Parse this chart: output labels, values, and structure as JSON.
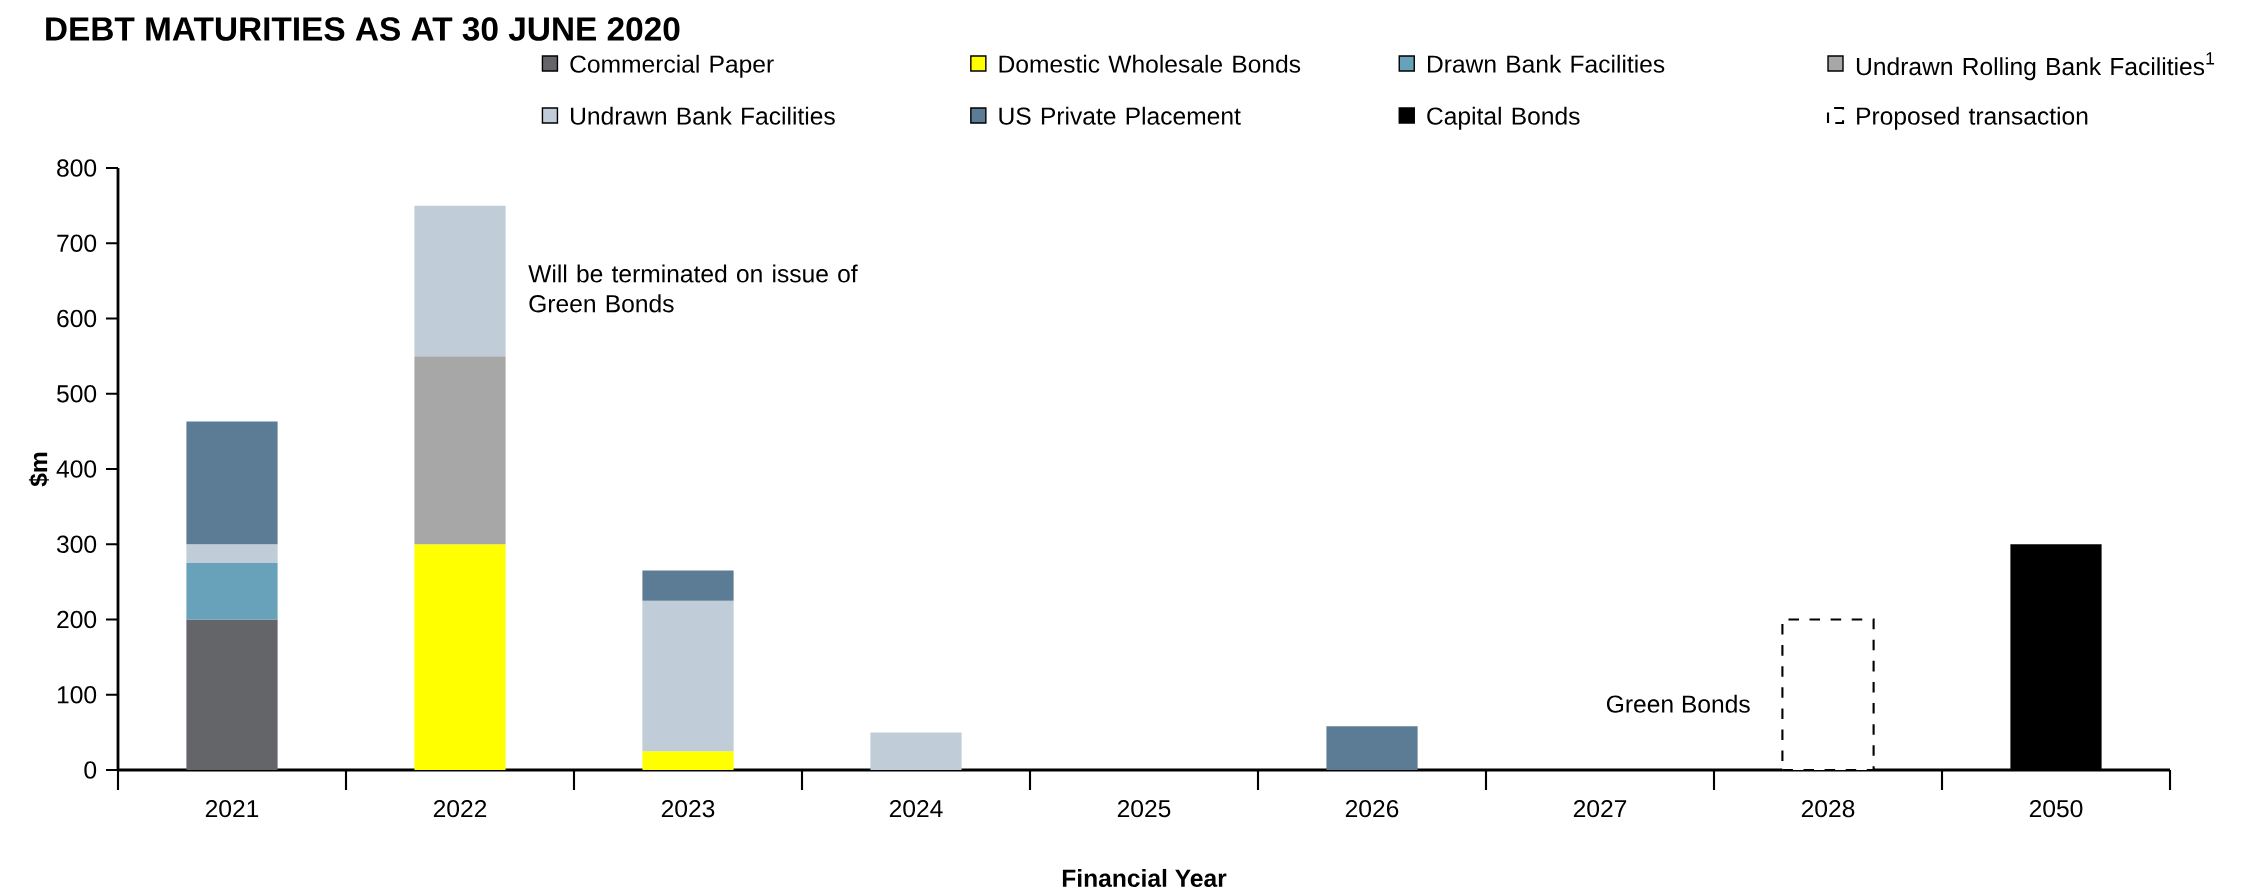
{
  "chart_data": {
    "type": "bar",
    "title": "DEBT MATURITIES AS AT 30 JUNE 2020",
    "xlabel": "Financial Year",
    "ylabel": "$m",
    "categories": [
      "2021",
      "2022",
      "2023",
      "2024",
      "2025",
      "2026",
      "2027",
      "2028",
      "2050"
    ],
    "stacked": true,
    "ylim": [
      0,
      800
    ],
    "yticks": [
      0,
      100,
      200,
      300,
      400,
      500,
      600,
      700,
      800
    ],
    "legend": "top right",
    "series": [
      {
        "name": "Commercial Paper",
        "color": "#636569",
        "values": [
          200,
          null,
          null,
          null,
          null,
          null,
          null,
          null,
          null
        ]
      },
      {
        "name": "Domestic Wholesale Bonds",
        "color": "#ffff00",
        "values": [
          null,
          300,
          25,
          null,
          null,
          null,
          null,
          null,
          null
        ]
      },
      {
        "name": "Drawn Bank Facilities",
        "color": "#67a2ba",
        "values": [
          75,
          null,
          null,
          null,
          null,
          null,
          null,
          null,
          null
        ]
      },
      {
        "name": "Undrawn Rolling Bank Facilities$^{1}$",
        "color": "#a7a7a8",
        "values": [
          null,
          250,
          null,
          null,
          null,
          null,
          null,
          null,
          null
        ]
      },
      {
        "name": "Undrawn Bank Facilities",
        "color": "#c0cdd8",
        "values": [
          25,
          200,
          200,
          50,
          null,
          null,
          null,
          null,
          null
        ]
      },
      {
        "name": "US Private Placement",
        "color": "#5b7c94",
        "values": [
          163,
          null,
          40,
          null,
          null,
          58,
          null,
          null,
          null
        ]
      },
      {
        "name": "Capital Bonds",
        "color": "#000000",
        "values": [
          null,
          null,
          null,
          null,
          null,
          null,
          null,
          null,
          300
        ]
      },
      {
        "name": "Proposed transaction",
        "color": "#ffffff",
        "line_style": "dashed",
        "values": [
          null,
          null,
          null,
          null,
          null,
          null,
          null,
          200,
          null
        ]
      }
    ],
    "annotations": [
      "Will be terminated on issue of Green Bonds",
      "Green Bonds"
    ]
  }
}
